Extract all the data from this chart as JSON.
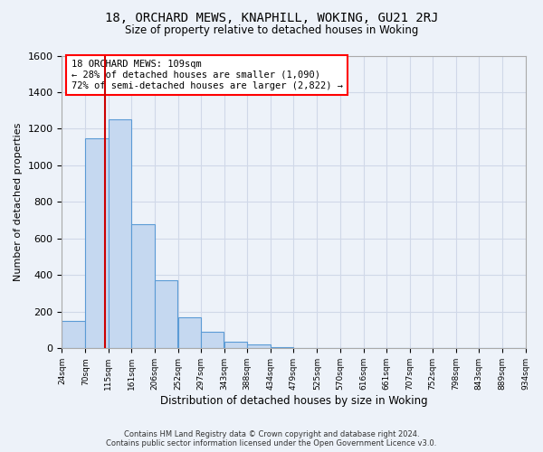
{
  "title1": "18, ORCHARD MEWS, KNAPHILL, WOKING, GU21 2RJ",
  "title2": "Size of property relative to detached houses in Woking",
  "xlabel": "Distribution of detached houses by size in Woking",
  "ylabel": "Number of detached properties",
  "bar_left_edges": [
    24,
    70,
    115,
    161,
    206,
    252,
    297,
    343,
    388,
    434,
    479,
    525,
    570,
    616,
    661,
    707,
    752,
    798,
    843,
    889
  ],
  "bar_heights": [
    150,
    1150,
    1250,
    680,
    370,
    170,
    90,
    35,
    20,
    5,
    0,
    0,
    0,
    0,
    0,
    0,
    0,
    0,
    0,
    0
  ],
  "bin_width": 45,
  "bar_color": "#c5d8f0",
  "bar_edge_color": "#5b9bd5",
  "property_size": 109,
  "annotation_line1": "18 ORCHARD MEWS: 109sqm",
  "annotation_line2": "← 28% of detached houses are smaller (1,090)",
  "annotation_line3": "72% of semi-detached houses are larger (2,822) →",
  "vline_color": "#cc0000",
  "tick_labels": [
    "24sqm",
    "70sqm",
    "115sqm",
    "161sqm",
    "206sqm",
    "252sqm",
    "297sqm",
    "343sqm",
    "388sqm",
    "434sqm",
    "479sqm",
    "525sqm",
    "570sqm",
    "616sqm",
    "661sqm",
    "707sqm",
    "752sqm",
    "798sqm",
    "843sqm",
    "889sqm",
    "934sqm"
  ],
  "ylim": [
    0,
    1600
  ],
  "yticks": [
    0,
    200,
    400,
    600,
    800,
    1000,
    1200,
    1400,
    1600
  ],
  "grid_color": "#d0d8e8",
  "footer_line1": "Contains HM Land Registry data © Crown copyright and database right 2024.",
  "footer_line2": "Contains public sector information licensed under the Open Government Licence v3.0.",
  "bg_color": "#edf2f9"
}
